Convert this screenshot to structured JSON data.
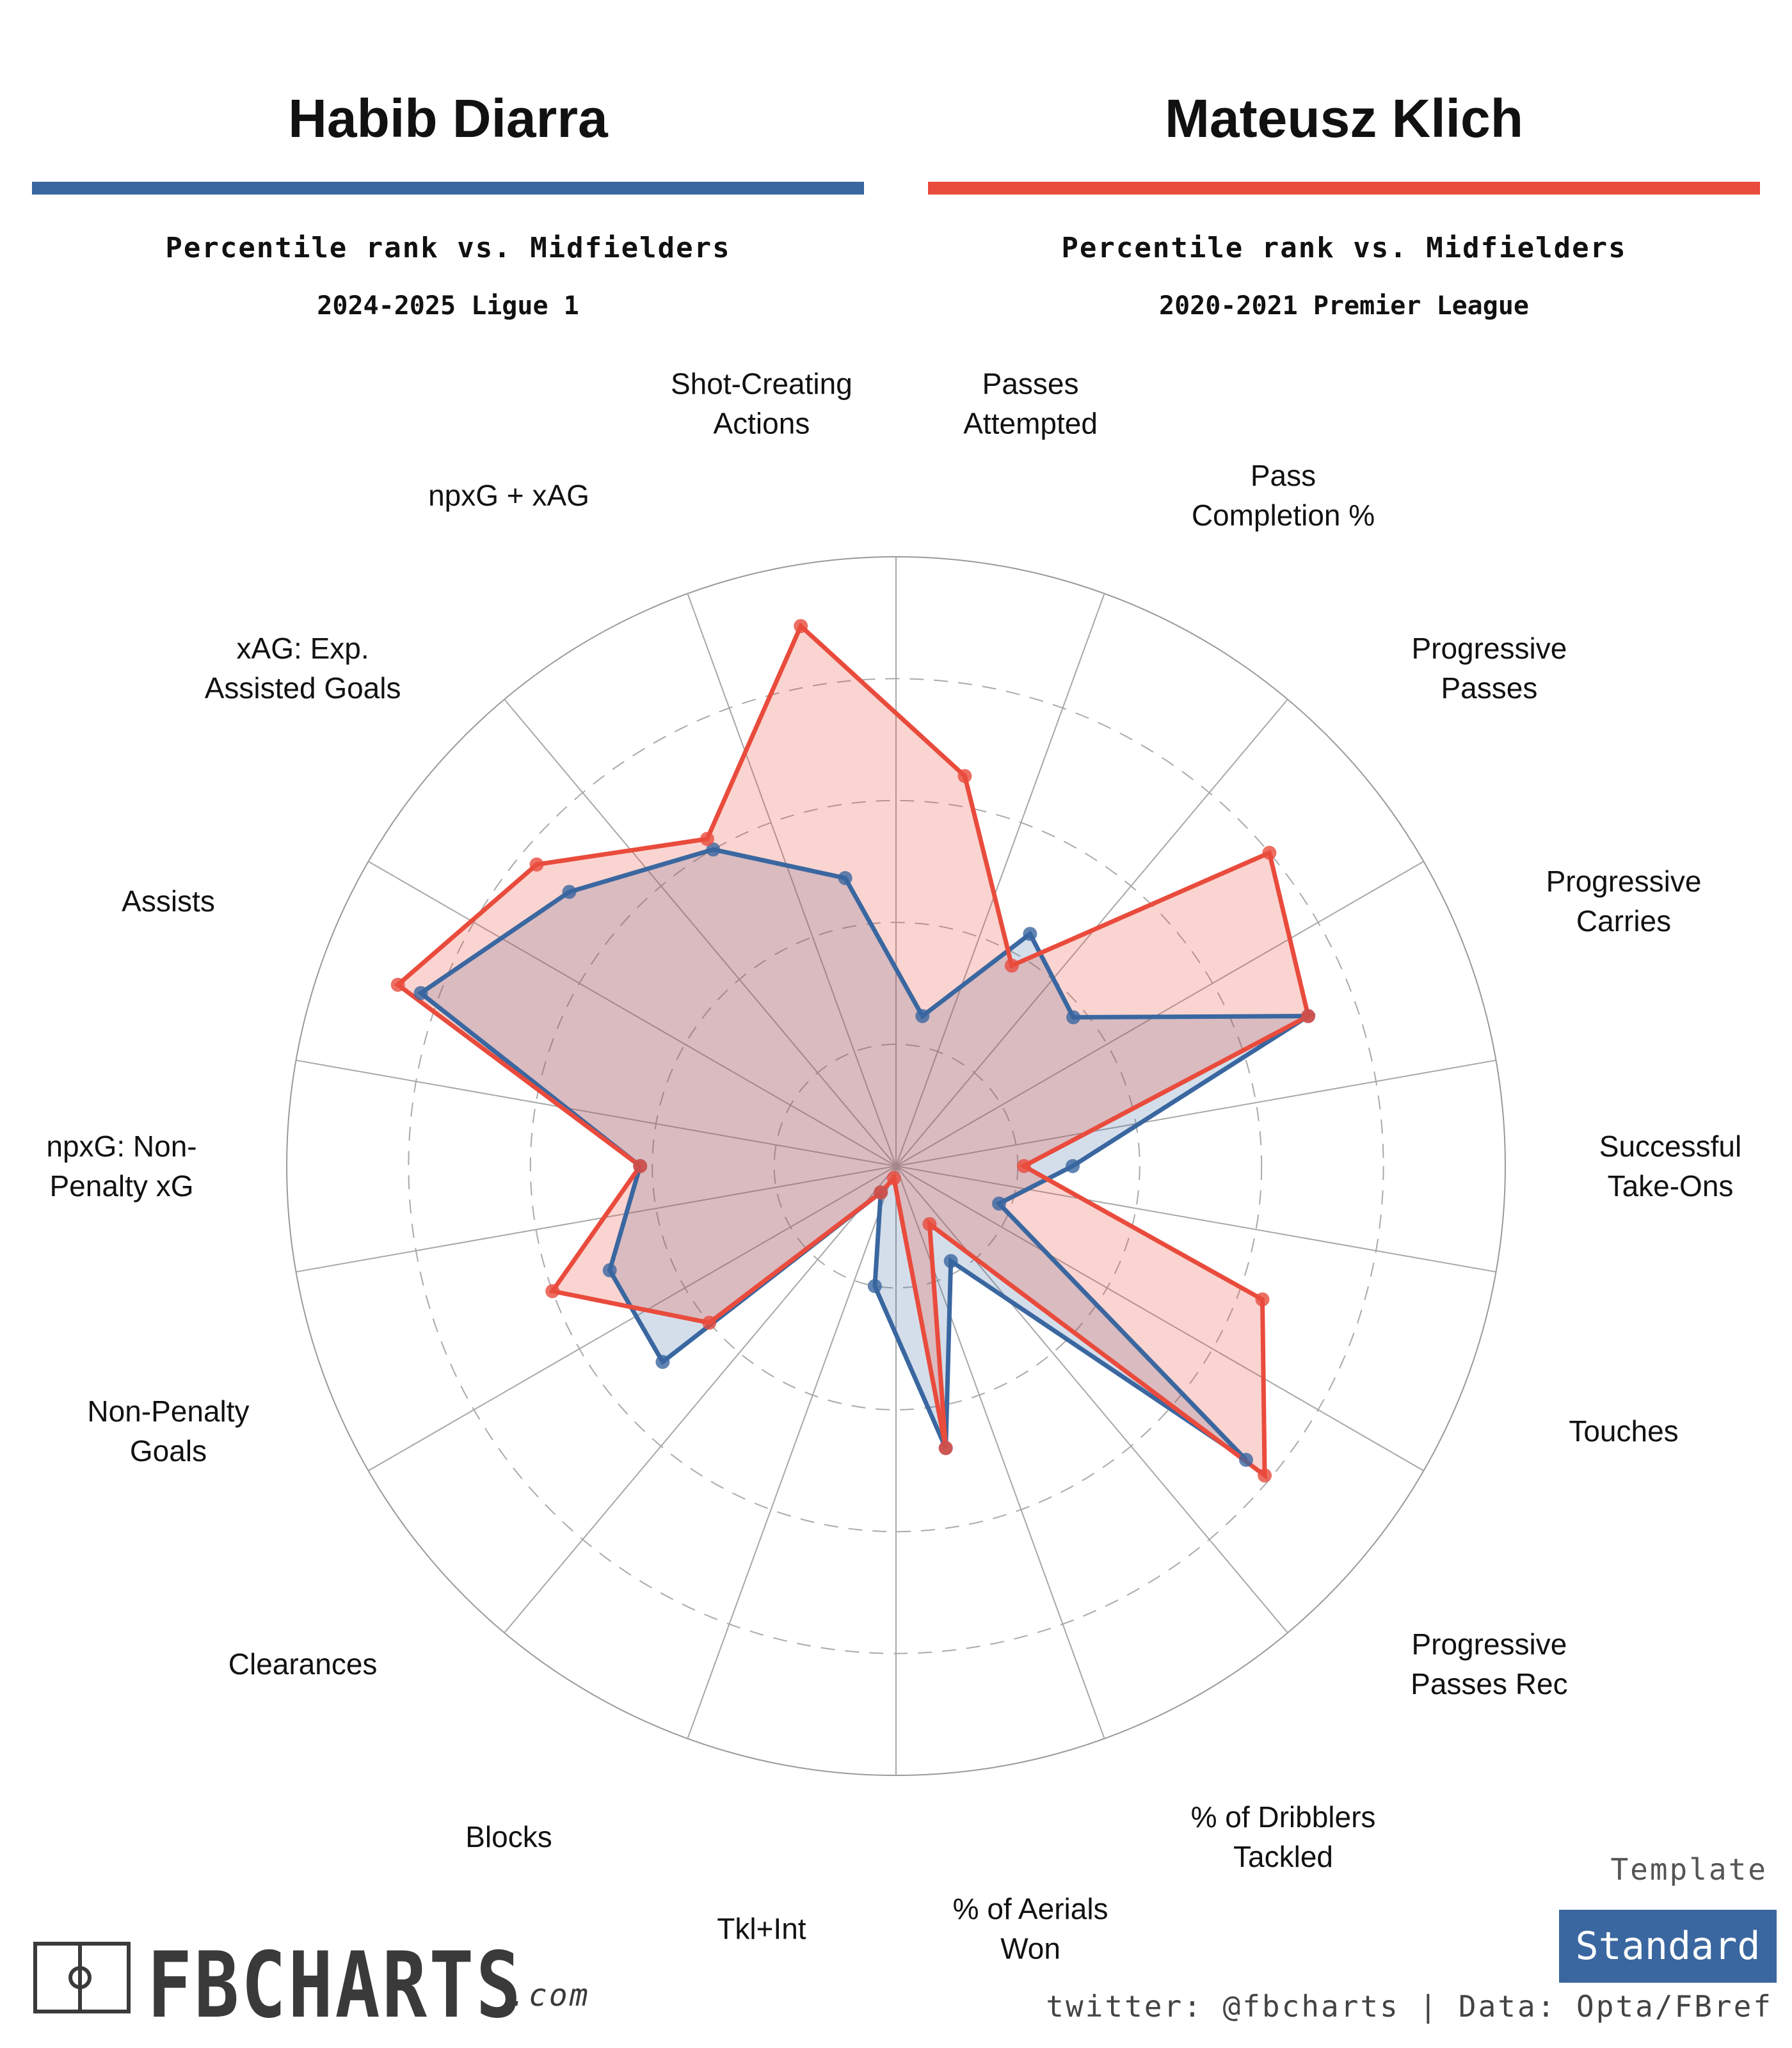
{
  "player1": {
    "name": "Habib Diarra",
    "subtitle": "Percentile rank vs. Midfielders",
    "season": "2024-2025 Ligue 1",
    "color": "#3a67a0"
  },
  "player2": {
    "name": "Mateusz Klich",
    "subtitle": "Percentile rank vs. Midfielders",
    "season": "2020-2021 Premier League",
    "color": "#e94b3c"
  },
  "chart_data": {
    "type": "radar",
    "range": [
      0,
      100
    ],
    "grid_levels": [
      20,
      40,
      60,
      80
    ],
    "categories": [
      "Passes Attempted",
      "Pass Completion %",
      "Progressive Passes",
      "Progressive Carries",
      "Successful Take-Ons",
      "Touches",
      "Progressive Passes Rec",
      "% of Dribblers Tackled",
      "% of Aerials Won",
      "Tkl+Int",
      "Blocks",
      "Clearances",
      "Non-Penalty Goals",
      "npxG: Non-Penalty xG",
      "Assists",
      "xAG: Exp. Assisted Goals",
      "npxG + xAG",
      "Shot-Creating Actions"
    ],
    "label_lines": [
      [
        "Passes",
        "Attempted"
      ],
      [
        "Pass",
        "Completion %"
      ],
      [
        "Progressive",
        "Passes"
      ],
      [
        "Progressive",
        "Carries"
      ],
      [
        "Successful",
        "Take-Ons"
      ],
      [
        "Touches"
      ],
      [
        "Progressive",
        "Passes Rec"
      ],
      [
        "% of Dribblers",
        "Tackled"
      ],
      [
        "% of Aerials",
        "Won"
      ],
      [
        "Tkl+Int"
      ],
      [
        "Blocks"
      ],
      [
        "Clearances"
      ],
      [
        "Non-Penalty",
        "Goals"
      ],
      [
        "npxG: Non-",
        "Penalty xG"
      ],
      [
        "Assists"
      ],
      [
        "xAG: Exp.",
        "Assisted Goals"
      ],
      [
        "npxG + xAG"
      ],
      [
        "Shot-Creating",
        "Actions"
      ]
    ],
    "series": [
      {
        "name": "Habib Diarra",
        "color": "#3a67a0",
        "values": [
          25,
          44,
          38,
          72,
          29,
          18,
          75,
          18,
          47,
          20,
          5,
          50,
          50,
          42,
          83,
          70,
          60,
          48
        ]
      },
      {
        "name": "Mateusz Klich",
        "color": "#e94b3c",
        "values": [
          65,
          38,
          80,
          72,
          21,
          64,
          79,
          11,
          47,
          2,
          5,
          40,
          60,
          42,
          87,
          77,
          62,
          90
        ]
      }
    ]
  },
  "template": {
    "label": "Template",
    "name": "Standard"
  },
  "brand": {
    "logo_text": "FBCHARTS",
    "logo_suffix": ".com"
  },
  "credits": "twitter: @fbcharts | Data: Opta/FBref"
}
